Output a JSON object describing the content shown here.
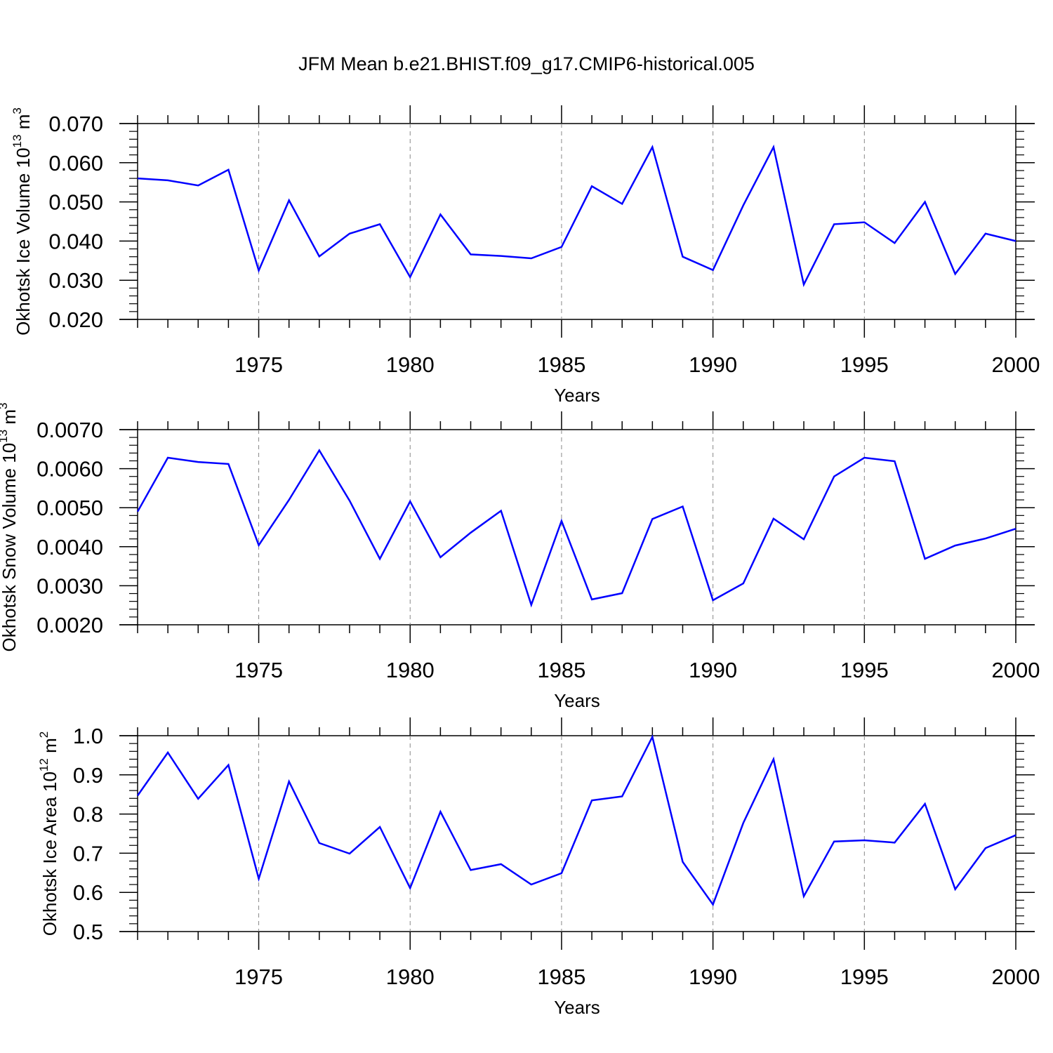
{
  "title": "JFM Mean b.e21.BHIST.f09_g17.CMIP6-historical.005",
  "colors": {
    "line": "#0000ff",
    "axis": "#000000",
    "grid": "#888888"
  },
  "chart_data": [
    {
      "type": "line",
      "title": "JFM Mean b.e21.BHIST.f09_g17.CMIP6-historical.005",
      "ylabel": "Okhotsk Ice Volume 10",
      "ylabel_exp": "13",
      "ylabel_unit": " m",
      "ylabel_unit_exp": "3",
      "xlabel": "Years",
      "xlim": [
        1971,
        2000
      ],
      "ylim": [
        0.02,
        0.07
      ],
      "yticks": [
        0.02,
        0.03,
        0.04,
        0.05,
        0.06,
        0.07
      ],
      "ytick_labels": [
        "0.020",
        "0.030",
        "0.040",
        "0.050",
        "0.060",
        "0.070"
      ],
      "xticks": [
        1975,
        1980,
        1985,
        1990,
        1995,
        2000
      ],
      "xtick_labels": [
        "1975",
        "1980",
        "1985",
        "1990",
        "1995",
        "2000"
      ],
      "x": [
        1971,
        1972,
        1973,
        1974,
        1975,
        1976,
        1977,
        1978,
        1979,
        1980,
        1981,
        1982,
        1983,
        1984,
        1985,
        1986,
        1987,
        1988,
        1989,
        1990,
        1991,
        1992,
        1993,
        1994,
        1995,
        1996,
        1997,
        1998,
        1999,
        2000
      ],
      "y": [
        0.056,
        0.0555,
        0.0542,
        0.0582,
        0.0325,
        0.0504,
        0.0361,
        0.0419,
        0.0443,
        0.0308,
        0.0468,
        0.0366,
        0.0362,
        0.0356,
        0.0385,
        0.054,
        0.0495,
        0.064,
        0.036,
        0.0326,
        0.0491,
        0.064,
        0.0289,
        0.0443,
        0.0448,
        0.0395,
        0.05,
        0.0316,
        0.0419,
        0.04
      ]
    },
    {
      "type": "line",
      "ylabel": "Okhotsk Snow Volume 10",
      "ylabel_exp": "13",
      "ylabel_unit": " m",
      "ylabel_unit_exp": "3",
      "xlabel": "Years",
      "xlim": [
        1971,
        2000
      ],
      "ylim": [
        0.002,
        0.007
      ],
      "yticks": [
        0.002,
        0.003,
        0.004,
        0.005,
        0.006,
        0.007
      ],
      "ytick_labels": [
        "0.0020",
        "0.0030",
        "0.0040",
        "0.0050",
        "0.0060",
        "0.0070"
      ],
      "xticks": [
        1975,
        1980,
        1985,
        1990,
        1995,
        2000
      ],
      "xtick_labels": [
        "1975",
        "1980",
        "1985",
        "1990",
        "1995",
        "2000"
      ],
      "x": [
        1971,
        1972,
        1973,
        1974,
        1975,
        1976,
        1977,
        1978,
        1979,
        1980,
        1981,
        1982,
        1983,
        1984,
        1985,
        1986,
        1987,
        1988,
        1989,
        1990,
        1991,
        1992,
        1993,
        1994,
        1995,
        1996,
        1997,
        1998,
        1999,
        2000
      ],
      "y": [
        0.0049,
        0.00628,
        0.00617,
        0.00612,
        0.00404,
        0.0052,
        0.00647,
        0.00518,
        0.00369,
        0.00516,
        0.00373,
        0.00436,
        0.00492,
        0.00251,
        0.00466,
        0.00265,
        0.00281,
        0.00471,
        0.00503,
        0.00263,
        0.00306,
        0.00472,
        0.00419,
        0.0058,
        0.00628,
        0.00619,
        0.00369,
        0.00403,
        0.00421,
        0.00446
      ]
    },
    {
      "type": "line",
      "ylabel": "Okhotsk Ice Area 10",
      "ylabel_exp": "12",
      "ylabel_unit": " m",
      "ylabel_unit_exp": "2",
      "xlabel": "Years",
      "xlim": [
        1971,
        2000
      ],
      "ylim": [
        0.5,
        1.0
      ],
      "yticks": [
        0.5,
        0.6,
        0.7,
        0.8,
        0.9,
        1.0
      ],
      "ytick_labels": [
        "0.5",
        "0.6",
        "0.7",
        "0.8",
        "0.9",
        "1.0"
      ],
      "xticks": [
        1975,
        1980,
        1985,
        1990,
        1995,
        2000
      ],
      "xtick_labels": [
        "1975",
        "1980",
        "1985",
        "1990",
        "1995",
        "2000"
      ],
      "x": [
        1971,
        1972,
        1973,
        1974,
        1975,
        1976,
        1977,
        1978,
        1979,
        1980,
        1981,
        1982,
        1983,
        1984,
        1985,
        1986,
        1987,
        1988,
        1989,
        1990,
        1991,
        1992,
        1993,
        1994,
        1995,
        1996,
        1997,
        1998,
        1999,
        2000
      ],
      "y": [
        0.847,
        0.957,
        0.839,
        0.925,
        0.635,
        0.883,
        0.726,
        0.699,
        0.767,
        0.611,
        0.806,
        0.657,
        0.672,
        0.62,
        0.649,
        0.835,
        0.845,
        0.997,
        0.678,
        0.569,
        0.777,
        0.94,
        0.59,
        0.73,
        0.733,
        0.727,
        0.826,
        0.608,
        0.713,
        0.746
      ]
    }
  ]
}
